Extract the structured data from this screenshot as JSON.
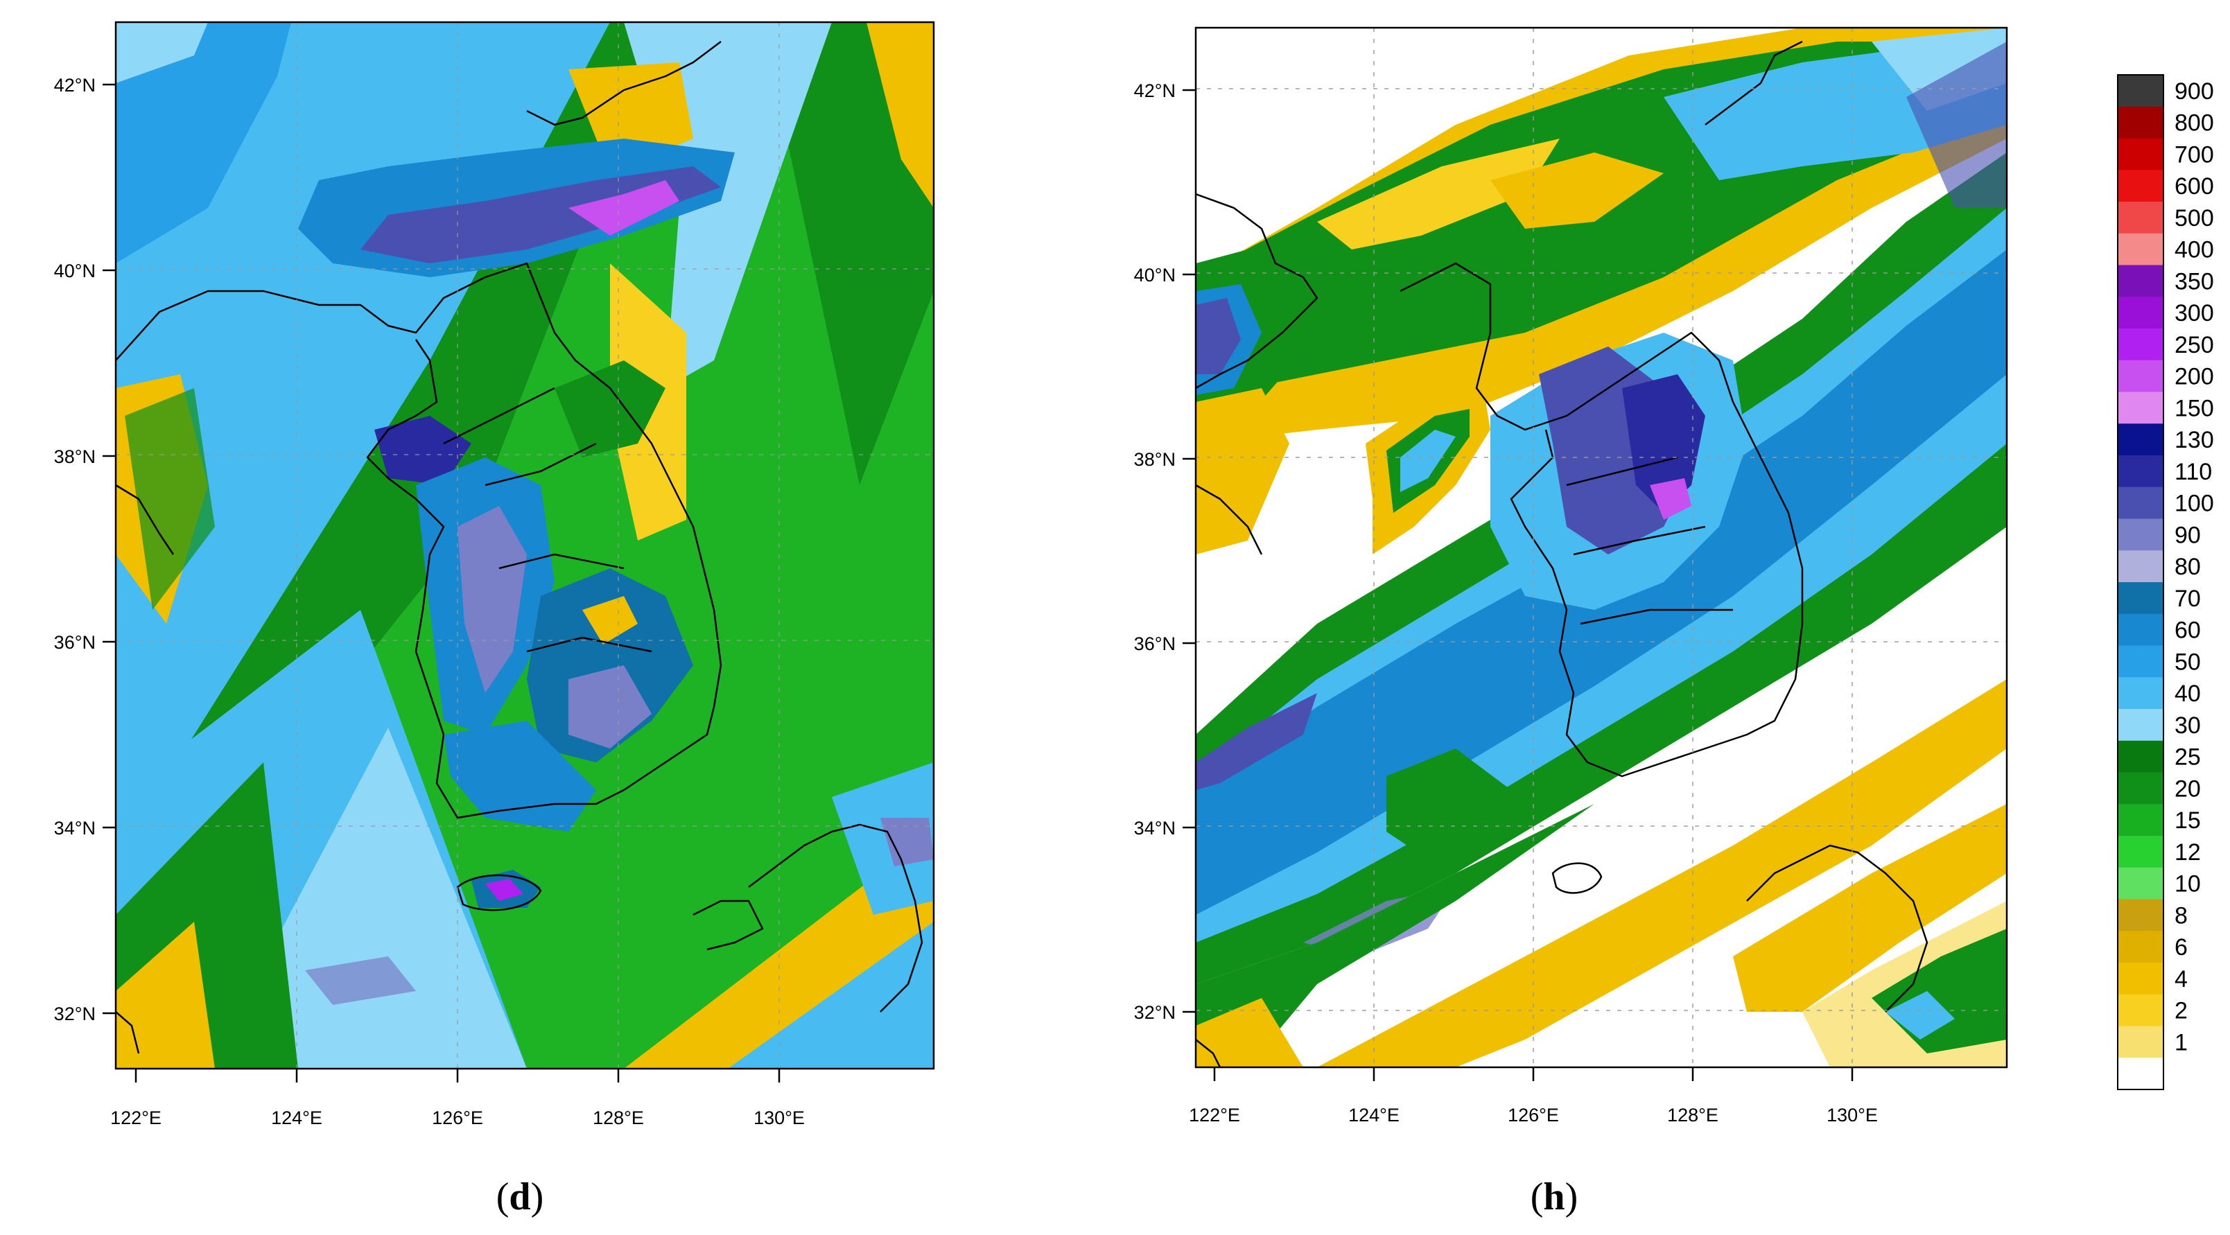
{
  "panels": [
    {
      "id": "d",
      "caption_letter": "d",
      "y_ticks": [
        "42°N",
        "40°N",
        "38°N",
        "36°N",
        "34°N",
        "32°N"
      ],
      "x_ticks": [
        "122°E",
        "124°E",
        "126°E",
        "128°E",
        "130°E"
      ]
    },
    {
      "id": "h",
      "caption_letter": "h",
      "y_ticks": [
        "42°N",
        "40°N",
        "38°N",
        "36°N",
        "34°N",
        "32°N"
      ],
      "x_ticks": [
        "122°E",
        "124°E",
        "126°E",
        "128°E",
        "130°E"
      ]
    }
  ],
  "colorbar": {
    "levels": [
      {
        "label": "900",
        "color": "#3a3a3a"
      },
      {
        "label": "800",
        "color": "#a00000"
      },
      {
        "label": "700",
        "color": "#cc0000"
      },
      {
        "label": "600",
        "color": "#e81010"
      },
      {
        "label": "500",
        "color": "#f04848"
      },
      {
        "label": "400",
        "color": "#f58a8a"
      },
      {
        "label": "350",
        "color": "#7a10b8"
      },
      {
        "label": "300",
        "color": "#9a10d8"
      },
      {
        "label": "250",
        "color": "#b020f0"
      },
      {
        "label": "200",
        "color": "#c850f0"
      },
      {
        "label": "150",
        "color": "#e088f0"
      },
      {
        "label": "130",
        "color": "#0a1290"
      },
      {
        "label": "110",
        "color": "#2a2aa0"
      },
      {
        "label": "100",
        "color": "#4a50b0"
      },
      {
        "label": "90",
        "color": "#7a80c8"
      },
      {
        "label": "80",
        "color": "#b0b0dc"
      },
      {
        "label": "70",
        "color": "#1070a8"
      },
      {
        "label": "60",
        "color": "#1888d0"
      },
      {
        "label": "50",
        "color": "#28a0e8"
      },
      {
        "label": "40",
        "color": "#48bcf0"
      },
      {
        "label": "30",
        "color": "#90d8f8"
      },
      {
        "label": "25",
        "color": "#087a10"
      },
      {
        "label": "20",
        "color": "#109018"
      },
      {
        "label": "15",
        "color": "#18b020"
      },
      {
        "label": "12",
        "color": "#28d030"
      },
      {
        "label": "10",
        "color": "#60e060"
      },
      {
        "label": "8",
        "color": "#c8a010"
      },
      {
        "label": "6",
        "color": "#e0b000"
      },
      {
        "label": "4",
        "color": "#f0c000"
      },
      {
        "label": "2",
        "color": "#f8d020"
      },
      {
        "label": "1",
        "color": "#f8e070"
      },
      {
        "label": "",
        "color": "#ffffff"
      }
    ]
  }
}
